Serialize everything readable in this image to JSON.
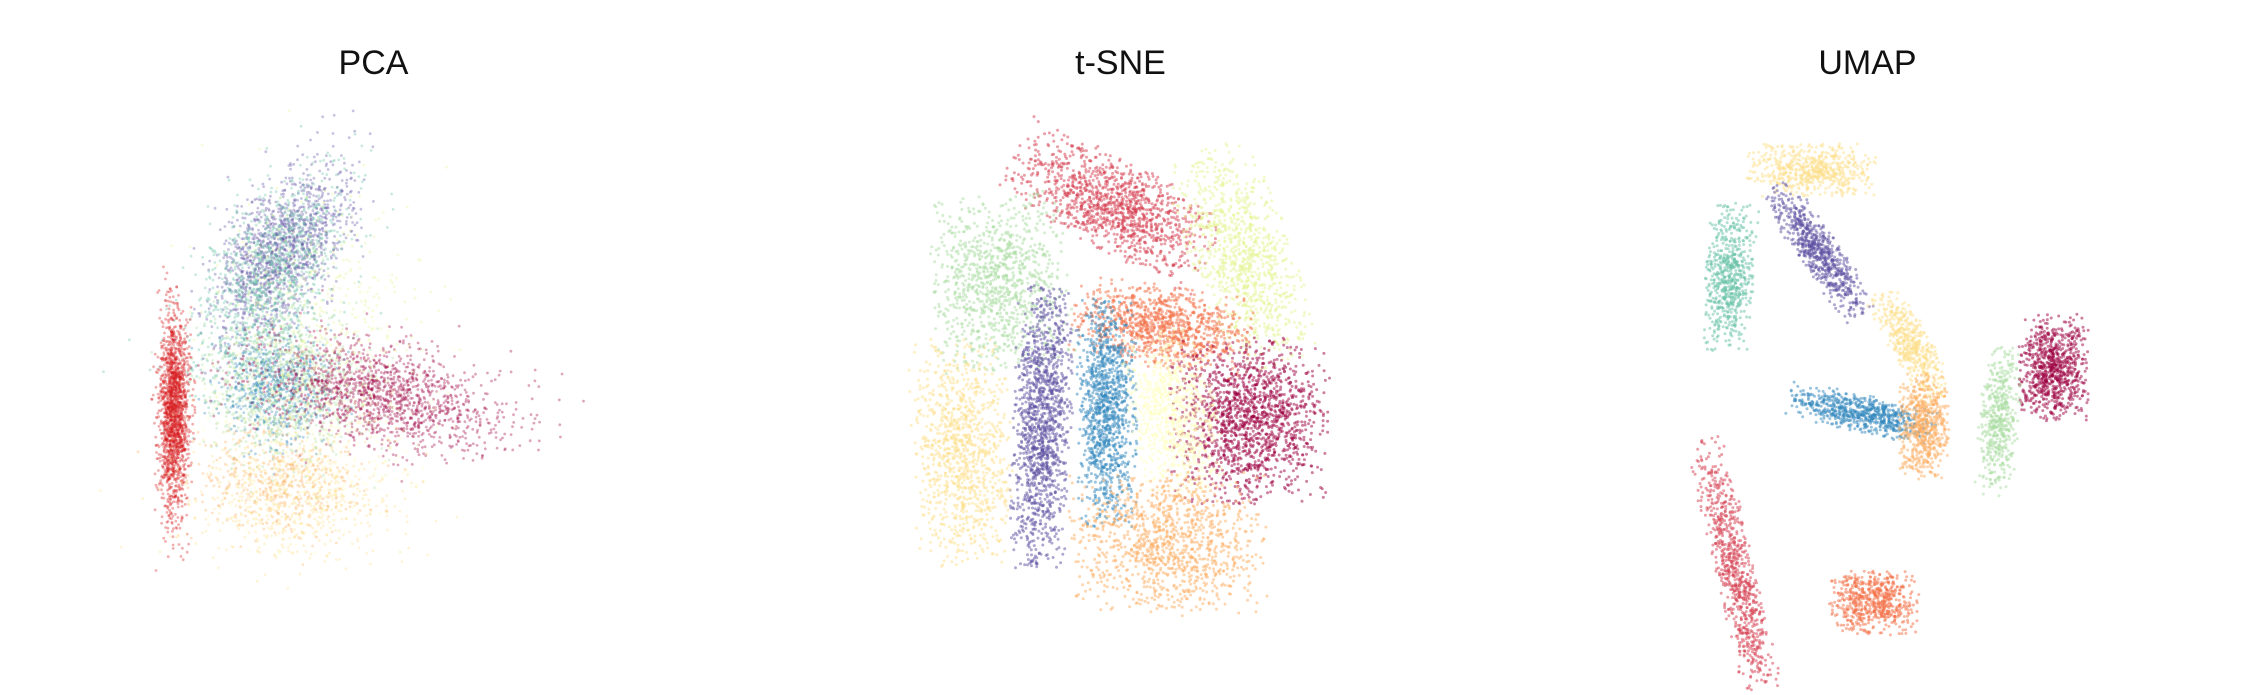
{
  "chart_data": [
    {
      "type": "scatter",
      "title": "PCA",
      "xlabel": "",
      "ylabel": "",
      "axes": "hidden",
      "grid": false,
      "legend": "none",
      "colors": [
        "#d7191c",
        "#e8485a",
        "#f46d43",
        "#fdae61",
        "#fee08b",
        "#ffffbf",
        "#e6f598",
        "#abdda4",
        "#66c2a5",
        "#3288bd",
        "#5e4fa2",
        "#9e0142"
      ],
      "clusters": [
        {
          "color": "#5e4fa2",
          "center": [
            0.05,
            0.55
          ],
          "spread": [
            0.1,
            0.18
          ],
          "angle": -0.7,
          "n": 1400
        },
        {
          "color": "#66c2a5",
          "center": [
            0.0,
            0.45
          ],
          "spread": [
            0.12,
            0.22
          ],
          "angle": -0.6,
          "n": 1100
        },
        {
          "color": "#abdda4",
          "center": [
            0.05,
            0.05
          ],
          "spread": [
            0.16,
            0.12
          ],
          "angle": 0.0,
          "n": 1100
        },
        {
          "color": "#3288bd",
          "center": [
            0.02,
            0.05
          ],
          "spread": [
            0.12,
            0.1
          ],
          "angle": 0.0,
          "n": 600
        },
        {
          "color": "#9e0142",
          "center": [
            0.45,
            0.02
          ],
          "spread": [
            0.26,
            0.09
          ],
          "angle": -0.15,
          "n": 1500
        },
        {
          "color": "#d7191c",
          "center": [
            -0.4,
            -0.05
          ],
          "spread": [
            0.03,
            0.18
          ],
          "angle": 0.0,
          "n": 1700
        },
        {
          "color": "#fee08b",
          "center": [
            0.1,
            -0.35
          ],
          "spread": [
            0.22,
            0.12
          ],
          "angle": 0.0,
          "n": 700
        },
        {
          "color": "#fdae61",
          "center": [
            0.05,
            -0.3
          ],
          "spread": [
            0.18,
            0.1
          ],
          "angle": 0.0,
          "n": 400
        },
        {
          "color": "#e6f598",
          "center": [
            0.2,
            0.3
          ],
          "spread": [
            0.2,
            0.22
          ],
          "angle": 0.0,
          "n": 400
        },
        {
          "color": "#ffffbf",
          "center": [
            0.15,
            -0.1
          ],
          "spread": [
            0.25,
            0.2
          ],
          "angle": 0.0,
          "n": 400
        }
      ]
    },
    {
      "type": "scatter",
      "title": "t-SNE",
      "xlabel": "",
      "ylabel": "",
      "axes": "hidden",
      "grid": false,
      "legend": "none",
      "clusters": [
        {
          "color": "#d53e4f",
          "center": [
            -0.1,
            0.75
          ],
          "spread": [
            0.22,
            0.09
          ],
          "angle": -0.45,
          "n": 1200
        },
        {
          "color": "#e6f598",
          "center": [
            0.42,
            0.55
          ],
          "spread": [
            0.1,
            0.22
          ],
          "angle": 0.35,
          "n": 1000
        },
        {
          "color": "#abdda4",
          "center": [
            -0.55,
            0.45
          ],
          "spread": [
            0.14,
            0.17
          ],
          "angle": 0.1,
          "n": 1000
        },
        {
          "color": "#f46d43",
          "center": [
            0.1,
            0.28
          ],
          "spread": [
            0.18,
            0.08
          ],
          "angle": -0.15,
          "n": 1000
        },
        {
          "color": "#9e0142",
          "center": [
            0.45,
            -0.08
          ],
          "spread": [
            0.16,
            0.16
          ],
          "angle": 0.0,
          "n": 1500
        },
        {
          "color": "#5e4fa2",
          "center": [
            -0.38,
            -0.1
          ],
          "spread": [
            0.06,
            0.28
          ],
          "angle": -0.05,
          "n": 1300
        },
        {
          "color": "#3288bd",
          "center": [
            -0.12,
            -0.05
          ],
          "spread": [
            0.06,
            0.22
          ],
          "angle": 0.0,
          "n": 1100
        },
        {
          "color": "#fee08b",
          "center": [
            -0.7,
            -0.2
          ],
          "spread": [
            0.1,
            0.22
          ],
          "angle": 0.05,
          "n": 1000
        },
        {
          "color": "#ffffbf",
          "center": [
            0.15,
            -0.05
          ],
          "spread": [
            0.09,
            0.16
          ],
          "angle": 0.2,
          "n": 800
        },
        {
          "color": "#fdae61",
          "center": [
            0.12,
            -0.55
          ],
          "spread": [
            0.2,
            0.14
          ],
          "angle": 0.0,
          "n": 1100
        }
      ]
    },
    {
      "type": "scatter",
      "title": "UMAP",
      "xlabel": "",
      "ylabel": "",
      "axes": "hidden",
      "grid": false,
      "legend": "none",
      "clusters": [
        {
          "color": "#fee08b",
          "center": [
            -0.25,
            0.85
          ],
          "spread": [
            0.13,
            0.05
          ],
          "angle": 0.0,
          "n": 600
        },
        {
          "color": "#5e4fa2",
          "center": [
            -0.22,
            0.55
          ],
          "spread": [
            0.04,
            0.15
          ],
          "angle": 0.65,
          "n": 700
        },
        {
          "color": "#66c2a5",
          "center": [
            -0.58,
            0.45
          ],
          "spread": [
            0.05,
            0.14
          ],
          "angle": -0.1,
          "n": 600
        },
        {
          "color": "#fee08b",
          "center": [
            0.15,
            0.2
          ],
          "spread": [
            0.04,
            0.12
          ],
          "angle": 0.55,
          "n": 500
        },
        {
          "color": "#9e0142",
          "center": [
            0.72,
            0.12
          ],
          "spread": [
            0.07,
            0.1
          ],
          "angle": 0.0,
          "n": 800
        },
        {
          "color": "#3288bd",
          "center": [
            -0.05,
            -0.05
          ],
          "spread": [
            0.15,
            0.035
          ],
          "angle": -0.2,
          "n": 700
        },
        {
          "color": "#fdae61",
          "center": [
            0.2,
            -0.1
          ],
          "spread": [
            0.05,
            0.1
          ],
          "angle": 0.0,
          "n": 600
        },
        {
          "color": "#abdda4",
          "center": [
            0.5,
            -0.08
          ],
          "spread": [
            0.04,
            0.14
          ],
          "angle": -0.1,
          "n": 500
        },
        {
          "color": "#d53e4f",
          "center": [
            -0.55,
            -0.65
          ],
          "spread": [
            0.04,
            0.26
          ],
          "angle": 0.25,
          "n": 800
        },
        {
          "color": "#f46d43",
          "center": [
            0.0,
            -0.75
          ],
          "spread": [
            0.09,
            0.06
          ],
          "angle": 0.0,
          "n": 600
        }
      ]
    }
  ]
}
